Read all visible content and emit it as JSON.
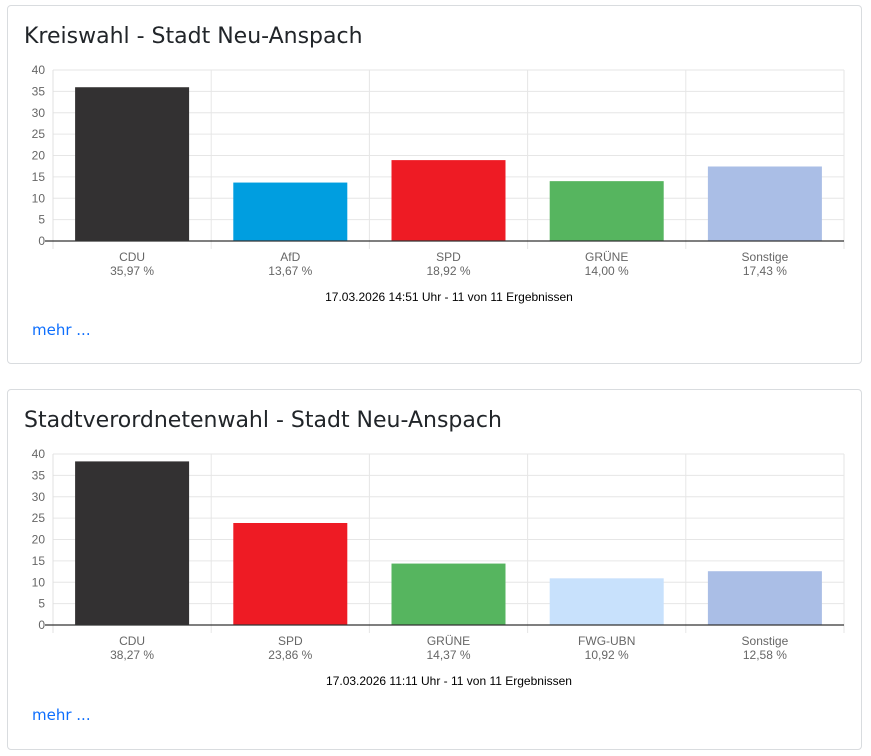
{
  "cards": [
    {
      "title": "Kreiswahl - Stadt Neu-Anspach",
      "more_label": "mehr ...",
      "chart_data": {
        "type": "bar",
        "categories": [
          "CDU",
          "AfD",
          "SPD",
          "GRÜNE",
          "Sonstige"
        ],
        "values": [
          35.97,
          13.67,
          18.92,
          14.0,
          17.43
        ],
        "value_labels": [
          "35,97 %",
          "13,67 %",
          "18,92 %",
          "14,00 %",
          "17,43 %"
        ],
        "colors": [
          "#333132",
          "#009ee0",
          "#ee1b24",
          "#56b55f",
          "#aabee6"
        ],
        "ylim": [
          0,
          40
        ],
        "yticks": [
          0,
          5,
          10,
          15,
          20,
          25,
          30,
          35,
          40
        ],
        "grid": true,
        "footer": "17.03.2026 14:51 Uhr - 11 von 11 Ergebnissen"
      }
    },
    {
      "title": "Stadtverordnetenwahl - Stadt Neu-Anspach",
      "more_label": "mehr ...",
      "chart_data": {
        "type": "bar",
        "categories": [
          "CDU",
          "SPD",
          "GRÜNE",
          "FWG-UBN",
          "Sonstige"
        ],
        "values": [
          38.27,
          23.86,
          14.37,
          10.92,
          12.58
        ],
        "value_labels": [
          "38,27 %",
          "23,86 %",
          "14,37 %",
          "10,92 %",
          "12,58 %"
        ],
        "colors": [
          "#333132",
          "#ee1b24",
          "#56b55f",
          "#c8e1fc",
          "#aabee6"
        ],
        "ylim": [
          0,
          40
        ],
        "yticks": [
          0,
          5,
          10,
          15,
          20,
          25,
          30,
          35,
          40
        ],
        "grid": true,
        "footer": "17.03.2026 11:11 Uhr - 11 von 11 Ergebnissen"
      }
    }
  ]
}
